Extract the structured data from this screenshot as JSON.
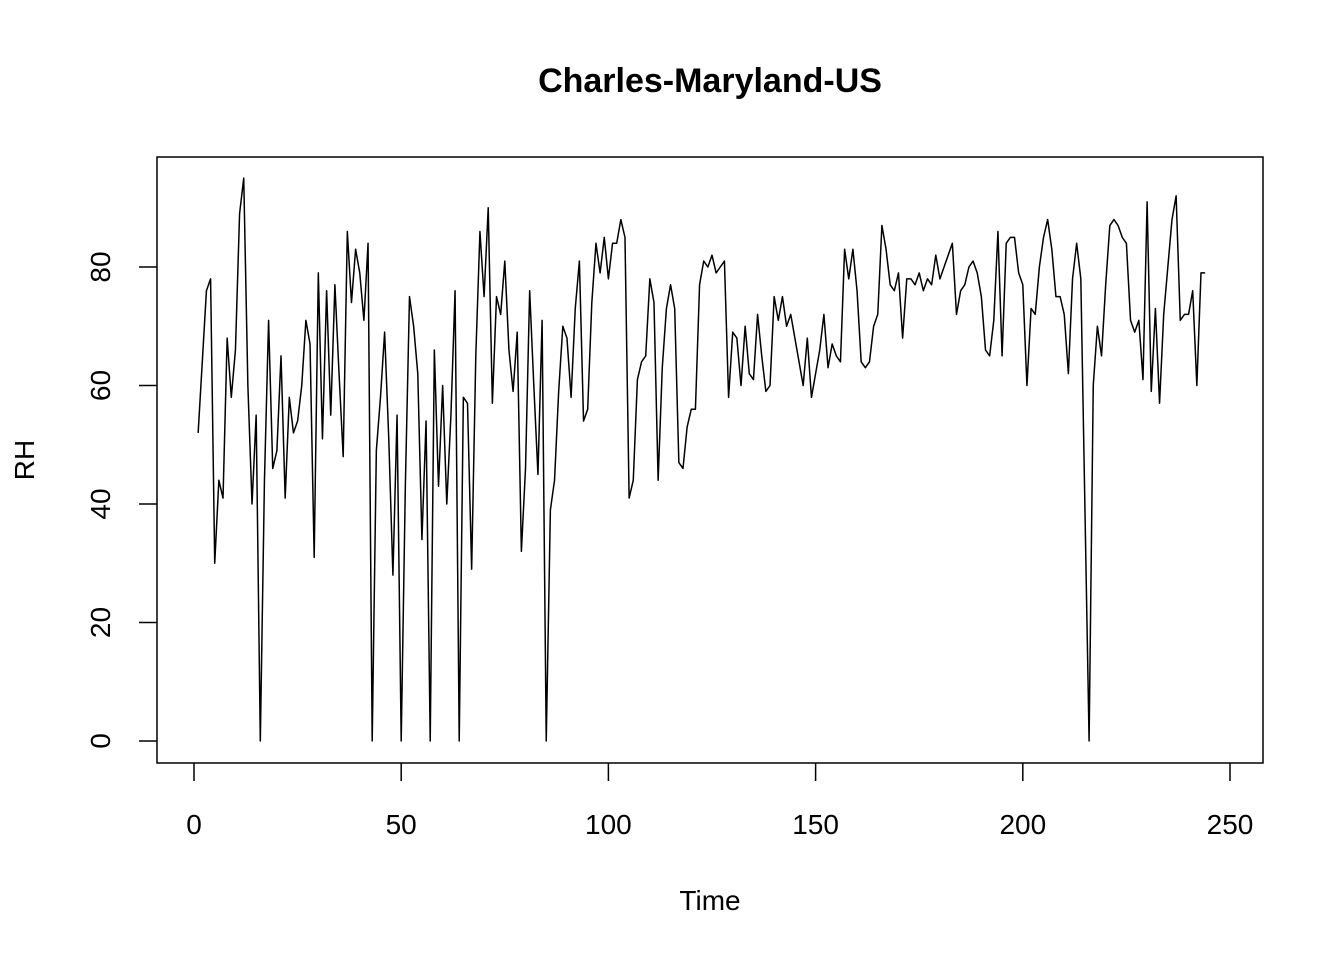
{
  "chart_data": {
    "type": "line",
    "title": "Charles-Maryland-US",
    "xlabel": "Time",
    "ylabel": "RH",
    "xlim": [
      0,
      250
    ],
    "ylim": [
      0,
      95
    ],
    "x_ticks": [
      0,
      50,
      100,
      150,
      200,
      250
    ],
    "y_ticks": [
      0,
      20,
      40,
      60,
      80
    ],
    "grid": false,
    "color": "#000000",
    "series": [
      {
        "x_start": 1,
        "x_step": 1,
        "values": [
          52,
          64,
          76,
          78,
          30,
          44,
          41,
          68,
          58,
          66,
          89,
          95,
          60,
          40,
          55,
          0,
          44,
          71,
          46,
          49,
          65,
          41,
          58,
          52,
          54,
          60,
          71,
          67,
          31,
          79,
          51,
          76,
          55,
          77,
          62,
          48,
          86,
          74,
          83,
          79,
          71,
          84,
          0,
          49,
          58,
          69,
          51,
          28,
          55,
          0,
          43,
          75,
          70,
          62,
          34,
          54,
          0,
          66,
          43,
          60,
          40,
          55,
          76,
          0,
          58,
          57,
          29,
          65,
          86,
          75,
          90,
          57,
          75,
          72,
          81,
          66,
          59,
          69,
          32,
          46,
          76,
          60,
          45,
          71,
          0,
          39,
          44,
          59,
          70,
          68,
          58,
          73,
          81,
          54,
          56,
          74,
          84,
          79,
          85,
          78,
          84,
          84,
          88,
          85,
          41,
          44,
          61,
          64,
          65,
          78,
          74,
          44,
          63,
          73,
          77,
          73,
          47,
          46,
          53,
          56,
          56,
          77,
          81,
          80,
          82,
          79,
          80,
          81,
          58,
          69,
          68,
          60,
          70,
          62,
          61,
          72,
          65,
          59,
          60,
          75,
          71,
          75,
          70,
          72,
          68,
          64,
          60,
          68,
          58,
          62,
          66,
          72,
          63,
          67,
          65,
          64,
          83,
          78,
          83,
          76,
          64,
          63,
          64,
          70,
          72,
          87,
          83,
          77,
          76,
          79,
          68,
          78,
          78,
          77,
          79,
          76,
          78,
          77,
          82,
          78,
          80,
          82,
          84,
          72,
          76,
          77,
          80,
          81,
          79,
          75,
          66,
          65,
          71,
          86,
          65,
          84,
          85,
          85,
          79,
          77,
          60,
          73,
          72,
          80,
          85,
          88,
          83,
          75,
          75,
          72,
          62,
          78,
          84,
          78,
          39,
          0,
          60,
          70,
          65,
          77,
          87,
          88,
          87,
          85,
          84,
          71,
          69,
          71,
          61,
          91,
          59,
          73,
          57,
          72,
          80,
          88,
          92,
          71,
          72,
          72,
          76,
          60,
          79,
          79
        ]
      }
    ]
  }
}
